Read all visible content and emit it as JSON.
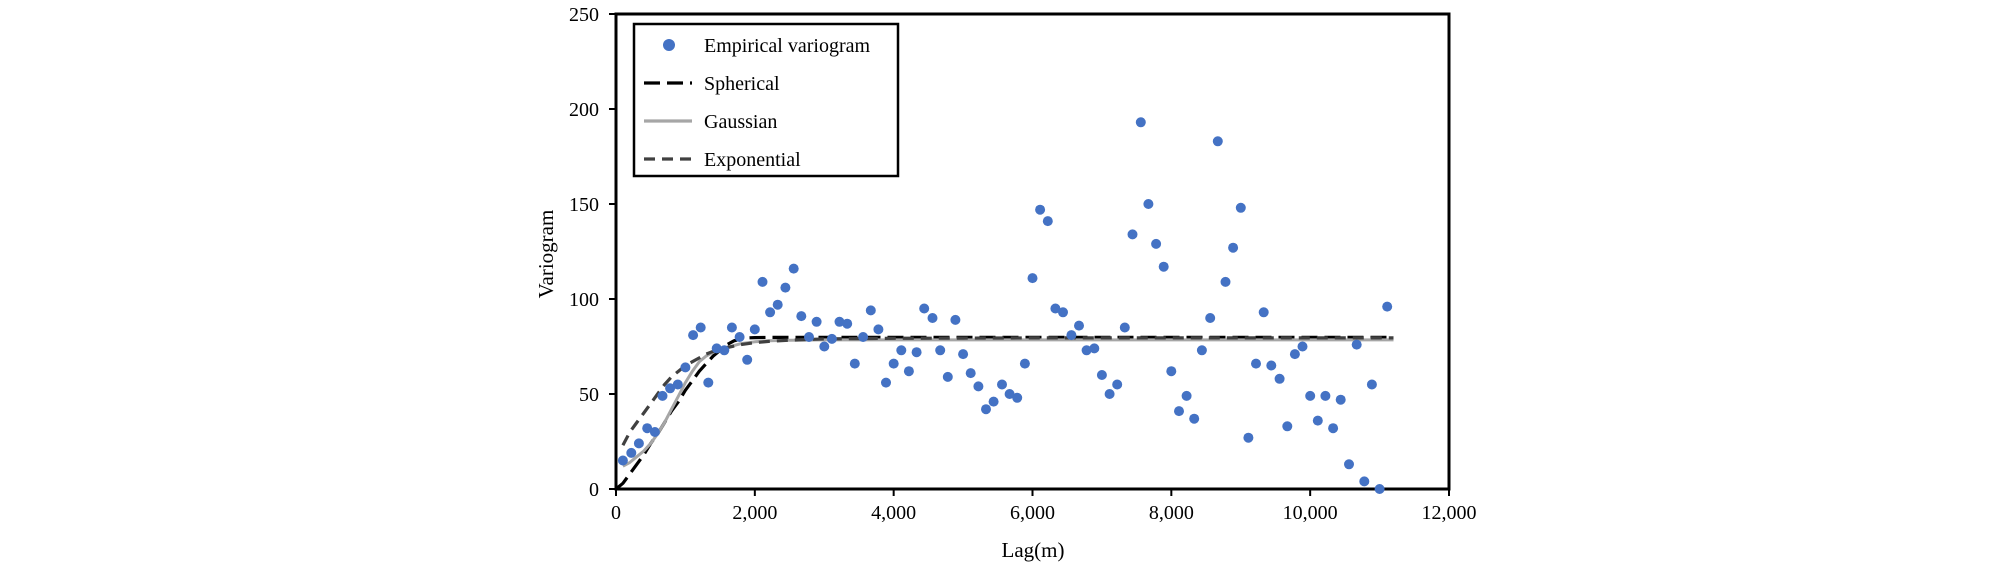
{
  "chart_data": {
    "type": "scatter",
    "title": "",
    "xlabel": "Lag(m)",
    "ylabel": "Variogram",
    "xlim": [
      0,
      12000
    ],
    "ylim": [
      0,
      250
    ],
    "x_ticks": [
      0,
      2000,
      4000,
      6000,
      8000,
      10000,
      12000
    ],
    "x_tick_labels": [
      "0",
      "2,000",
      "4,000",
      "6,000",
      "8,000",
      "10,000",
      "12,000"
    ],
    "y_ticks": [
      0,
      50,
      100,
      150,
      200,
      250
    ],
    "y_tick_labels": [
      "0",
      "50",
      "100",
      "150",
      "200",
      "250"
    ],
    "grid": false,
    "legend_position": "top-left",
    "colors": {
      "empirical": "#4472C4",
      "spherical": "#000000",
      "gaussian": "#A6A6A6",
      "exponential": "#404040"
    },
    "series": [
      {
        "name": "Empirical variogram",
        "kind": "points",
        "x": [
          100,
          220,
          330,
          450,
          560,
          670,
          780,
          890,
          1000,
          1110,
          1220,
          1330,
          1450,
          1560,
          1670,
          1780,
          1890,
          2000,
          2110,
          2220,
          2330,
          2440,
          2560,
          2670,
          2780,
          2890,
          3000,
          3110,
          3220,
          3330,
          3440,
          3560,
          3670,
          3780,
          3890,
          4000,
          4110,
          4220,
          4330,
          4440,
          4560,
          4670,
          4780,
          4890,
          5000,
          5110,
          5220,
          5330,
          5440,
          5560,
          5670,
          5780,
          5890,
          6000,
          6110,
          6220,
          6330,
          6440,
          6560,
          6670,
          6780,
          6890,
          7000,
          7110,
          7220,
          7330,
          7440,
          7560,
          7670,
          7780,
          7890,
          8000,
          8110,
          8220,
          8330,
          8440,
          8560,
          8670,
          8780,
          8890,
          9000,
          9110,
          9220,
          9330,
          9440,
          9560,
          9670,
          9780,
          9890,
          10000,
          10110,
          10220,
          10330,
          10440,
          10560,
          10670,
          10780,
          10890,
          11000,
          11110
        ],
        "values": [
          15,
          19,
          24,
          32,
          30,
          49,
          53,
          55,
          64,
          81,
          85,
          56,
          74,
          73,
          85,
          80,
          68,
          84,
          109,
          93,
          97,
          106,
          116,
          91,
          80,
          88,
          75,
          79,
          88,
          87,
          66,
          80,
          94,
          84,
          56,
          66,
          73,
          62,
          72,
          95,
          90,
          73,
          59,
          89,
          71,
          61,
          54,
          42,
          46,
          55,
          50,
          48,
          66,
          111,
          147,
          141,
          95,
          93,
          81,
          86,
          73,
          74,
          60,
          50,
          55,
          85,
          134,
          193,
          150,
          129,
          117,
          62,
          41,
          49,
          37,
          73,
          90,
          183,
          109,
          127,
          148,
          27,
          66,
          93,
          65,
          58,
          33,
          71,
          75,
          49,
          36,
          49,
          32,
          47,
          13,
          76,
          4,
          55,
          0,
          96
        ]
      },
      {
        "name": "Spherical",
        "kind": "line",
        "style": "long-dash",
        "x": [
          0,
          100,
          200,
          300,
          400,
          500,
          600,
          700,
          800,
          900,
          1000,
          1100,
          1200,
          1300,
          1400,
          1500,
          1600,
          1700,
          1800,
          1900,
          2000,
          2200,
          2500,
          3000,
          4000,
          5000,
          6000,
          7000,
          8000,
          9000,
          10000,
          11000,
          11200
        ],
        "values": [
          0,
          3,
          8,
          13,
          18,
          24,
          29,
          35,
          41,
          46,
          52,
          57,
          62,
          66,
          70,
          73,
          76,
          78,
          79,
          79.5,
          79.7,
          79.8,
          79.8,
          79.8,
          79.8,
          79.8,
          79.8,
          79.8,
          79.8,
          79.8,
          79.8,
          79.8,
          79.8
        ]
      },
      {
        "name": "Gaussian",
        "kind": "line",
        "style": "solid",
        "x": [
          100,
          200,
          300,
          400,
          500,
          600,
          700,
          800,
          900,
          1000,
          1100,
          1200,
          1300,
          1400,
          1500,
          1600,
          1700,
          1800,
          1900,
          2000,
          2200,
          2500,
          3000,
          4000,
          5000,
          6000,
          7000,
          8000,
          9000,
          10000,
          11000,
          11200
        ],
        "values": [
          12,
          14,
          17,
          20,
          24,
          29,
          35,
          42,
          49,
          56,
          62,
          67,
          70,
          72,
          73.5,
          74.5,
          75.5,
          76.5,
          77,
          77.5,
          78,
          78.3,
          78.5,
          78.5,
          78.5,
          78.5,
          78.5,
          78.5,
          78.5,
          78.5,
          78.5,
          78.5
        ]
      },
      {
        "name": "Exponential",
        "kind": "line",
        "style": "dash",
        "x": [
          100,
          200,
          300,
          400,
          500,
          600,
          700,
          800,
          900,
          1000,
          1100,
          1200,
          1300,
          1400,
          1500,
          1600,
          1800,
          2000,
          2200,
          2500,
          3000,
          4000,
          5000,
          6000,
          7000,
          8000,
          9000,
          10000,
          11000,
          11200
        ],
        "values": [
          23,
          30,
          35,
          40,
          45,
          50,
          55,
          59,
          62,
          65,
          67,
          69,
          71,
          72.5,
          73.5,
          74.5,
          76,
          77,
          77.7,
          78.3,
          79,
          79.3,
          79.4,
          79.5,
          79.5,
          79.5,
          79.5,
          79.5,
          79.5,
          79.5
        ]
      }
    ]
  }
}
